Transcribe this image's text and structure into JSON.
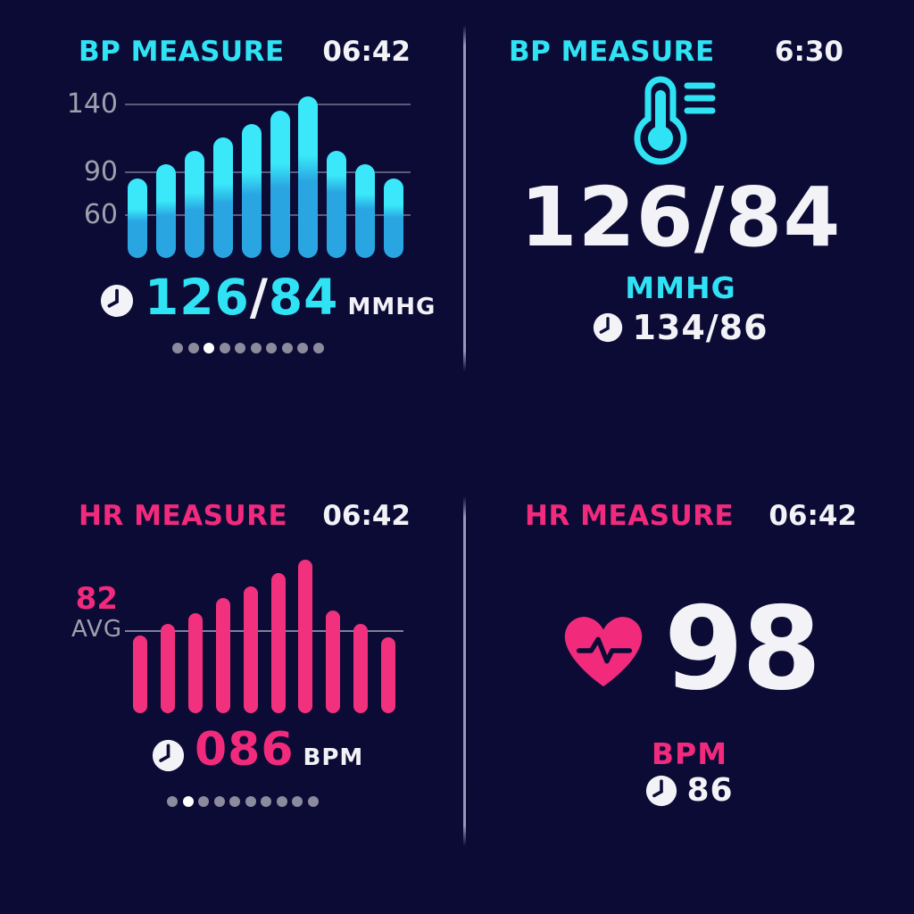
{
  "colors": {
    "background": "#0b0b36",
    "cyan": "#2fe3f4",
    "pink": "#f22a7c",
    "white": "#f2f2f7",
    "gray_label": "#9fa0ac",
    "bar_cyan_top": "#3ae8f9",
    "bar_cyan_bottom": "#29a6e2",
    "bar_pink": "#f2317e",
    "dot_inactive": "#8b8b9d",
    "dot_active": "#ffffff",
    "divider": "#b2b0d2"
  },
  "bp_chart_panel": {
    "title": "BP MEASURE",
    "time": "06:42",
    "reading": {
      "icon": "clock-icon",
      "systolic": "126",
      "separator": "/",
      "diastolic": "84",
      "unit": "MMHG"
    },
    "pager": {
      "count": 10,
      "active_index": 2
    }
  },
  "bp_value_panel": {
    "title": "BP MEASURE",
    "time": "6:30",
    "icon": "bp-monitor-icon",
    "value": "126/84",
    "unit": "MMHG",
    "last_reading": {
      "icon": "clock-icon",
      "value": "134/86"
    }
  },
  "hr_chart_panel": {
    "title": "HR MEASURE",
    "time": "06:42",
    "avg_value": "82",
    "avg_label": "AVG",
    "reading": {
      "icon": "clock-icon",
      "value": "086",
      "unit": "BPM"
    },
    "pager": {
      "count": 10,
      "active_index": 1
    }
  },
  "hr_value_panel": {
    "title": "HR MEASURE",
    "time": "06:42",
    "icon": "heart-pulse-icon",
    "value": "98",
    "unit": "BPM",
    "last_reading": {
      "icon": "clock-icon",
      "value": "86"
    }
  },
  "chart_data": [
    {
      "id": "bp-bar-chart",
      "type": "bar",
      "title": "BP MEASURE",
      "yticks": [
        "140",
        "90",
        "60"
      ],
      "ylim": [
        40,
        150
      ],
      "grid": true,
      "legend": "none",
      "series": [
        {
          "name": "systolic",
          "values": [
            85,
            95,
            105,
            115,
            125,
            135,
            145,
            105,
            95,
            85
          ]
        },
        {
          "name": "diastolic",
          "values": [
            57,
            62,
            67,
            73,
            80,
            86,
            91,
            80,
            67,
            60
          ]
        }
      ]
    },
    {
      "id": "hr-bar-chart",
      "type": "bar",
      "title": "HR MEASURE",
      "avg_line": 82,
      "values": [
        78,
        87,
        95,
        106,
        115,
        125,
        135,
        97,
        87,
        77
      ],
      "grid": true,
      "legend": "none"
    }
  ]
}
